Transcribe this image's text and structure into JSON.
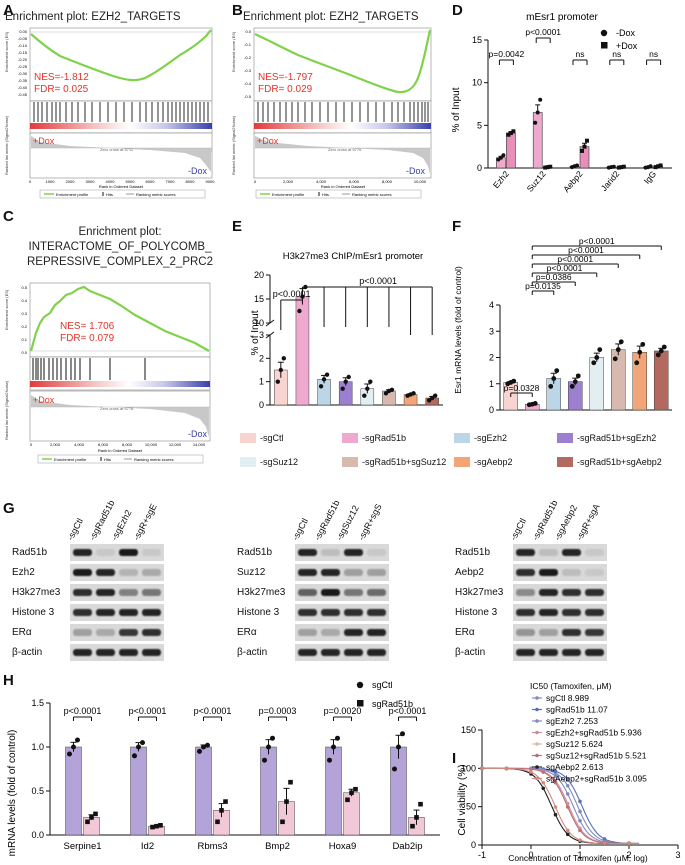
{
  "panels": {
    "A": "A",
    "B": "B",
    "C": "C",
    "D": "D",
    "E": "E",
    "F": "F",
    "G": "G",
    "H": "H",
    "I": "I"
  },
  "gsea": {
    "A": {
      "title": "Enrichment plot: EZH2_TARGETS",
      "nes": "NES=-1.812",
      "fdr": "FDR= 0.025",
      "pos_label": "+Dox",
      "neg_label": "-Dox",
      "es_ylabel": "Enrichment score (ES)",
      "metric_ylabel": "Ranked list metric (Signal2Noise)",
      "xlabel": "Rank in Ordered Dataset",
      "legend": [
        "Enrichment profile",
        "Hits",
        "Ranking metric scores"
      ],
      "xticks": [
        "0",
        "1000",
        "2000",
        "3000",
        "4000",
        "5000",
        "6000",
        "7000",
        "8000",
        "9000"
      ],
      "yticks": [
        "0.00",
        "-0.05",
        "-0.10",
        "-0.15",
        "-0.20",
        "-0.25",
        "-0.30",
        "-0.35",
        "-0.40",
        "-0.45"
      ],
      "zero_cross": "Zero cross at 5711"
    },
    "B": {
      "title": "Enrichment plot: EZH2_TARGETS",
      "nes": "NES=-1.797",
      "fdr": "FDR= 0.029",
      "pos_label": "+Dox",
      "neg_label": "-Dox",
      "es_ylabel": "Enrichment score (ES)",
      "metric_ylabel": "Ranked list metric (Signal2Noise)",
      "xlabel": "Rank in Ordered Dataset",
      "legend": [
        "Enrichment profile",
        "Hits",
        "Ranking metric scores"
      ],
      "xticks": [
        "0",
        "2,000",
        "4,000",
        "6,000",
        "8,000",
        "10,000"
      ],
      "yticks": [
        "0.0",
        "-0.1",
        "-0.2",
        "-0.3",
        "-0.4",
        "-0.5"
      ],
      "zero_cross": "Zero cross at 6776"
    },
    "C": {
      "title_lines": [
        "Enrichment plot:",
        "INTERACTOME_OF_POLYCOMB_",
        "REPRESSIVE_COMPLEX_2_PRC2"
      ],
      "nes": "NES= 1.706",
      "fdr": "FDR= 0.079",
      "pos_label": "+Dox",
      "neg_label": "-Dox",
      "es_ylabel": "Enrichment score (ES)",
      "metric_ylabel": "Ranked list metric (Signal2Noise)",
      "xlabel": "Rank in Ordered Dataset",
      "legend": [
        "Enrichment profile",
        "Hits",
        "Ranking metric scores"
      ],
      "xticks": [
        "0",
        "2,000",
        "4,000",
        "6,000",
        "8,000",
        "10,000",
        "12,000",
        "14,000"
      ],
      "yticks": [
        "0.5",
        "0.4",
        "0.3",
        "0.2",
        "0.1",
        "0.0"
      ],
      "zero_cross": "Zero cross at 6776"
    }
  },
  "blots": {
    "G1": {
      "lanes": [
        "-sgCtl",
        "-sgRad51b",
        "-sgEzh2",
        "-sgR+sgE"
      ],
      "rows": [
        "Rad51b",
        "Ezh2",
        "H3k27me3",
        "Histone 3",
        "ERα",
        "β-actin"
      ]
    },
    "G2": {
      "lanes": [
        "-sgCtl",
        "-sgRad51b",
        "-sgSuz12",
        "-sgR+sgS"
      ],
      "rows": [
        "Rad51b",
        "Suz12",
        "H3k27me3",
        "Histone 3",
        "ERα",
        "β-actin"
      ]
    },
    "G3": {
      "lanes": [
        "-sgCtl",
        "-sgRad51b",
        "-sgAebp2",
        "-sgR+sgA"
      ],
      "rows": [
        "Rad51b",
        "Aebp2",
        "H3k27me3",
        "Histone 3",
        "ERα",
        "β-actin"
      ]
    }
  },
  "e_legend": [
    {
      "label": "-sgCtl",
      "color": "#f7d4d0"
    },
    {
      "label": "-sgRad51b",
      "color": "#efa9cf"
    },
    {
      "label": "-sgEzh2",
      "color": "#bcd6e8"
    },
    {
      "label": "-sgRad51b+sgEzh2",
      "color": "#9c80cf"
    },
    {
      "label": "-sgSuz12",
      "color": "#e3eef2"
    },
    {
      "label": "-sgRad51b+sgSuz12",
      "color": "#d8b9b0"
    },
    {
      "label": "-sgAebp2",
      "color": "#f2a678"
    },
    {
      "label": "-sgRad51b+sgAebp2",
      "color": "#b3695f"
    }
  ],
  "chart_data": [
    {
      "id": "D",
      "type": "bar",
      "title": "mEsr1 promoter",
      "categories": [
        "Ezh2",
        "Suz12",
        "Aebp2",
        "Jarid2",
        "IgG"
      ],
      "series": [
        {
          "name": "-Dox",
          "values": [
            1.2,
            6.5,
            0.2,
            0.1,
            0.1
          ],
          "points": [
            [
              1.0,
              1.2,
              1.5
            ],
            [
              5.3,
              6.5,
              8.0
            ],
            [
              0.1,
              0.2,
              0.3
            ],
            [
              0.05,
              0.1,
              0.15
            ],
            [
              0.05,
              0.1,
              0.2
            ]
          ]
        },
        {
          "name": "+Dox",
          "values": [
            4.1,
            0.1,
            2.5,
            0.1,
            0.2
          ],
          "points": [
            [
              3.9,
              4.1,
              4.3
            ],
            [
              0.05,
              0.1,
              0.15
            ],
            [
              2.0,
              2.5,
              3.2
            ],
            [
              0.05,
              0.1,
              0.15
            ],
            [
              0.1,
              0.2,
              0.3
            ]
          ]
        }
      ],
      "pvalues": [
        "p=0.0042",
        "p<0.0001",
        "ns",
        "ns",
        "ns"
      ],
      "ylabel": "% of Input",
      "ylim": [
        0,
        15
      ],
      "yticks": [
        "0",
        "5",
        "10",
        "15"
      ],
      "legend": [
        "-Dox",
        "+Dox"
      ]
    },
    {
      "id": "E",
      "type": "bar",
      "title": "H3k27me3 ChIP/mEsr1 promoter",
      "categories": [
        "-sgCtl",
        "-sgRad51b",
        "-sgEzh2",
        "-sgRad51b+sgEzh2",
        "-sgSuz12",
        "-sgRad51b+sgSuz12",
        "-sgAebp2",
        "-sgRad51b+sgAebp2"
      ],
      "values": [
        1.5,
        15.5,
        1.1,
        1.0,
        0.7,
        0.6,
        0.45,
        0.3
      ],
      "points": [
        [
          1.0,
          1.5,
          2.0
        ],
        [
          12.5,
          15.5,
          17.5
        ],
        [
          0.8,
          1.1,
          1.3
        ],
        [
          0.7,
          1.0,
          1.2
        ],
        [
          0.4,
          0.7,
          1.0
        ],
        [
          0.5,
          0.6,
          0.65
        ],
        [
          0.4,
          0.45,
          0.5
        ],
        [
          0.2,
          0.3,
          0.4
        ]
      ],
      "ylabel": "% of Input",
      "yticks": [
        "0",
        "1",
        "2",
        "3",
        "10",
        "15",
        "20"
      ],
      "y_break": [
        3,
        10
      ],
      "pvalues": [
        "p<0.0001",
        "p<0.0001"
      ]
    },
    {
      "id": "F",
      "type": "bar",
      "categories": [
        "-sgCtl",
        "-sgRad51b",
        "-sgEzh2",
        "-sgRad51b+sgEzh2",
        "-sgSuz12",
        "-sgRad51b+sgSuz12",
        "-sgAebp2",
        "-sgRad51b+sgAebp2"
      ],
      "values": [
        1.05,
        0.22,
        1.2,
        1.08,
        2.0,
        2.3,
        2.2,
        2.25
      ],
      "points": [
        [
          1.0,
          1.05,
          1.1
        ],
        [
          0.2,
          0.22,
          0.25
        ],
        [
          0.9,
          1.2,
          1.5
        ],
        [
          0.9,
          1.08,
          1.3
        ],
        [
          1.8,
          2.0,
          2.3
        ],
        [
          1.95,
          2.3,
          2.6
        ],
        [
          1.8,
          2.2,
          2.5
        ],
        [
          2.1,
          2.25,
          2.4
        ]
      ],
      "ylabel": "Esr1 mRNA levels (fold of control)",
      "ylim": [
        0,
        4
      ],
      "yticks": [
        "0",
        "1",
        "2",
        "3",
        "4"
      ],
      "pvalues": [
        "p=0.0328",
        "p=0.0135",
        "p=0.0386",
        "p<0.0001",
        "p<0.0001",
        "p<0.0001",
        "p<0.0001"
      ]
    },
    {
      "id": "H",
      "type": "bar",
      "categories": [
        "Serpine1",
        "Id2",
        "Rbms3",
        "Bmp2",
        "Hoxa9",
        "Dab2ip"
      ],
      "series": [
        {
          "name": "sgCtl",
          "values": [
            1.0,
            1.0,
            1.0,
            1.0,
            1.0,
            1.0
          ],
          "points": [
            [
              0.92,
              1.0,
              1.08
            ],
            [
              0.9,
              1.0,
              1.05
            ],
            [
              0.95,
              1.0,
              1.02
            ],
            [
              0.85,
              1.0,
              1.1
            ],
            [
              0.85,
              1.0,
              1.1
            ],
            [
              0.75,
              1.0,
              1.15
            ]
          ]
        },
        {
          "name": "sgRad51b",
          "values": [
            0.2,
            0.1,
            0.28,
            0.38,
            0.48,
            0.2
          ],
          "points": [
            [
              0.15,
              0.2,
              0.24
            ],
            [
              0.09,
              0.1,
              0.11
            ],
            [
              0.15,
              0.28,
              0.38
            ],
            [
              0.15,
              0.38,
              0.6
            ],
            [
              0.4,
              0.48,
              0.52
            ],
            [
              0.1,
              0.2,
              0.35
            ]
          ]
        }
      ],
      "pvalues": [
        "p<0.0001",
        "p<0.0001",
        "p<0.0001",
        "p=0.0003",
        "p=0.0020",
        "p<0.0001"
      ],
      "ylabel": "mRNA levels (fold of control)",
      "ylim": [
        0,
        1.5
      ],
      "yticks": [
        "0.0",
        "0.5",
        "1.0",
        "1.5"
      ],
      "legend": [
        "sgCtl",
        "sgRad51b"
      ]
    },
    {
      "id": "I",
      "type": "line",
      "ylabel": "Cell viability (%)",
      "xlabel": "Concentration of Tamoxifen (μM, log)",
      "xlim": [
        -1,
        3
      ],
      "ylim": [
        0,
        150
      ],
      "xticks": [
        "-1",
        "0",
        "1",
        "2",
        "3"
      ],
      "yticks": [
        "0",
        "50",
        "100",
        "150"
      ],
      "legend_title": "IC50 (Tamoxifen, μM)",
      "series": [
        {
          "name": "sgCtl",
          "ic50": "8.989",
          "log_ic50": 0.95,
          "color": "#7f8fb4"
        },
        {
          "name": "sgRad51b",
          "ic50": "11.07",
          "log_ic50": 1.04,
          "color": "#5a6fb8"
        },
        {
          "name": "sgEzh2",
          "ic50": "7.253",
          "log_ic50": 0.86,
          "color": "#8a86c2"
        },
        {
          "name": "sgEzh2+sgRad51b",
          "ic50": "5.936",
          "log_ic50": 0.77,
          "color": "#c98f99"
        },
        {
          "name": "sgSuz12",
          "ic50": "5.624",
          "log_ic50": 0.75,
          "color": "#e0b7a8"
        },
        {
          "name": "sgSuz12+sgRad51b",
          "ic50": "5.521",
          "log_ic50": 0.74,
          "color": "#b9707a"
        },
        {
          "name": "sgAebp2",
          "ic50": "2.613",
          "log_ic50": 0.42,
          "color": "#222222"
        },
        {
          "name": "sgAebp2+sgRad51b",
          "ic50": "3.095",
          "log_ic50": 0.49,
          "color": "#d28a7f"
        }
      ]
    }
  ]
}
